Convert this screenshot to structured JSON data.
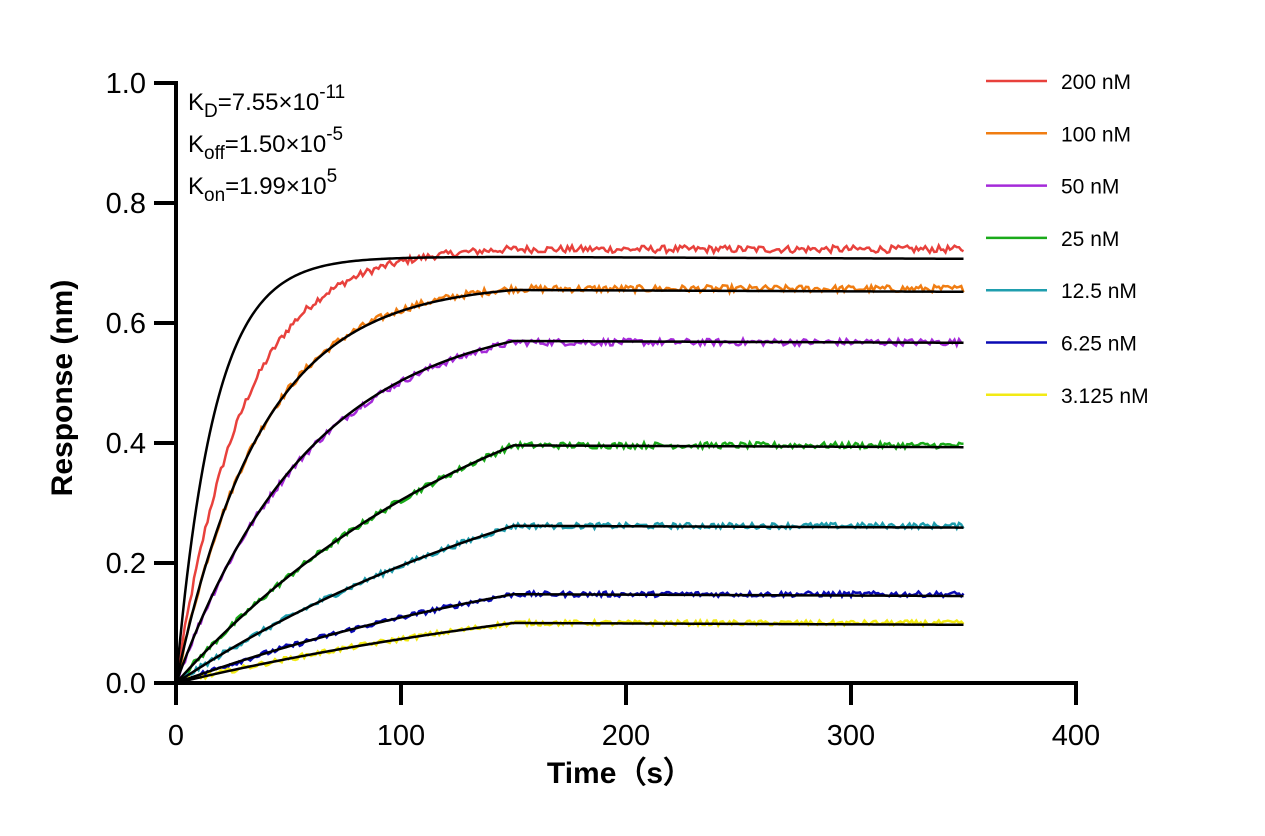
{
  "chart_data": {
    "type": "line",
    "title": "",
    "xlabel": "Time（s）",
    "ylabel": "Response (nm)",
    "xlim": [
      0,
      400
    ],
    "ylim": [
      0,
      1.0
    ],
    "xticks": [
      0,
      100,
      200,
      300,
      400
    ],
    "xtick_labels": [
      "0",
      "100",
      "200",
      "300",
      "400"
    ],
    "yticks": [
      0,
      0.2,
      0.4,
      0.6,
      0.8,
      1.0
    ],
    "ytick_labels": [
      "0.0",
      "0.2",
      "0.4",
      "0.6",
      "0.8",
      "1.0"
    ],
    "grid": false,
    "legend_position": "top-right",
    "annotations": [
      {
        "base": "K",
        "sub": "D",
        "text": "=7.55×10",
        "sup": "-11"
      },
      {
        "base": "K",
        "sub": "off",
        "text": "=1.50×10",
        "sup": "-5"
      },
      {
        "base": "K",
        "sub": "on",
        "text": "=1.99×10",
        "sup": "5"
      }
    ],
    "association_end": 150,
    "x_end": 350,
    "series": [
      {
        "name": "200 nM",
        "color": "#e8413c",
        "plateau": 0.723,
        "tau": 30,
        "fit_plateau": 0.71,
        "fit_tau": 17
      },
      {
        "name": "100 nM",
        "color": "#f07d12",
        "plateau": 0.657,
        "tau": 38,
        "fit_plateau": 0.655,
        "fit_tau": 38
      },
      {
        "name": "50 nM",
        "color": "#a52ad9",
        "plateau": 0.568,
        "tau": 60,
        "fit_plateau": 0.57,
        "fit_tau": 60
      },
      {
        "name": "25 nM",
        "color": "#1aaa1a",
        "plateau": 0.396,
        "tau": 150,
        "fit_plateau": 0.396,
        "fit_tau": 150
      },
      {
        "name": "12.5 nM",
        "color": "#1f9eae",
        "plateau": 0.262,
        "tau": 200,
        "fit_plateau": 0.262,
        "fit_tau": 200
      },
      {
        "name": "6.25 nM",
        "color": "#0a0ab4",
        "plateau": 0.148,
        "tau": 220,
        "fit_plateau": 0.148,
        "fit_tau": 220
      },
      {
        "name": "3.125 nM",
        "color": "#f2ea14",
        "plateau": 0.1,
        "tau": 240,
        "fit_plateau": 0.1,
        "fit_tau": 240
      }
    ],
    "fit_color": "#000000"
  }
}
